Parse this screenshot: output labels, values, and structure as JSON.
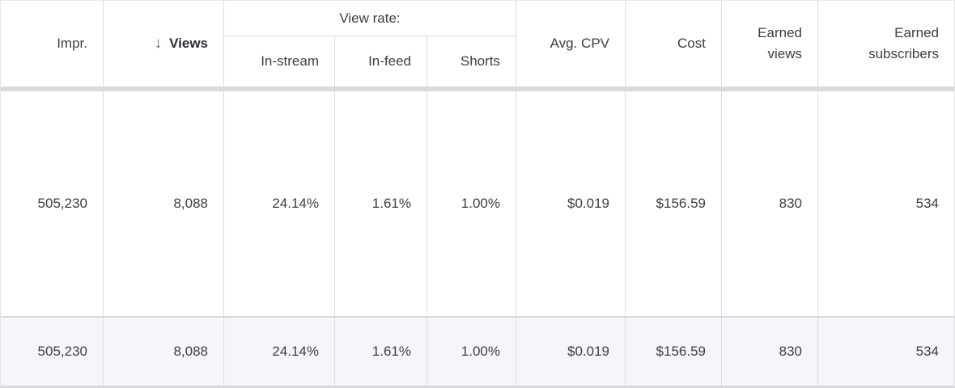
{
  "table": {
    "header": {
      "impr": "Impr.",
      "sort_icon": "↓",
      "views": "Views",
      "view_rate_group": "View rate:",
      "in_stream": "In-stream",
      "in_feed": "In-feed",
      "shorts": "Shorts",
      "avg_cpv": "Avg. CPV",
      "cost": "Cost",
      "earned_views": "Earned views",
      "earned_subscribers": "Earned subscribers"
    },
    "rows": [
      {
        "impr": "505,230",
        "views": "8,088",
        "in_stream": "24.14%",
        "in_feed": "1.61%",
        "shorts": "1.00%",
        "avg_cpv": "$0.019",
        "cost": "$156.59",
        "earned_views": "830",
        "earned_subscribers": "534"
      }
    ],
    "totals": {
      "impr": "505,230",
      "views": "8,088",
      "in_stream": "24.14%",
      "in_feed": "1.61%",
      "shorts": "1.00%",
      "avg_cpv": "$0.019",
      "cost": "$156.59",
      "earned_views": "830",
      "earned_subscribers": "534"
    },
    "colors": {
      "border": "#dadce0",
      "totals_background": "#f5f6fa",
      "text": "#3c4043"
    }
  }
}
